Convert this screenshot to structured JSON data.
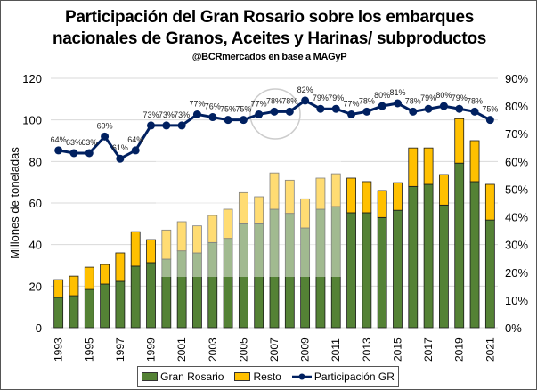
{
  "chart_data": {
    "type": "bar",
    "stacked": true,
    "title": "Participación del Gran Rosario sobre los embarques nacionales de Granos, Aceites y Harinas/ subproductos",
    "title_line1": "Participación del Gran Rosario sobre los embarques",
    "title_line2": "nacionales de Granos, Aceites y Harinas/ subproductos",
    "subtitle": "@BCRmercados en base a MAGyP",
    "ylabel": "Millones de toneladas",
    "ylim": [
      0,
      120
    ],
    "y_ticks": [
      "0",
      "20",
      "40",
      "60",
      "80",
      "100",
      "120"
    ],
    "y2lim": [
      0,
      90
    ],
    "y2_ticks": [
      "0%",
      "10%",
      "20%",
      "30%",
      "40%",
      "50%",
      "60%",
      "70%",
      "80%",
      "90%"
    ],
    "grid": true,
    "legend_position": "bottom",
    "categories": [
      "1993",
      "1994",
      "1995",
      "1996",
      "1997",
      "1998",
      "1999",
      "2000",
      "2001",
      "2002",
      "2003",
      "2004",
      "2005",
      "2006",
      "2007",
      "2008",
      "2009",
      "2010",
      "2011",
      "2012",
      "2013",
      "2014",
      "2015",
      "2016",
      "2017",
      "2018",
      "2019",
      "2020",
      "2021"
    ],
    "x_tick_labels": [
      "1993",
      "1995",
      "1997",
      "1999",
      "2001",
      "2003",
      "2005",
      "2007",
      "2009",
      "2011",
      "2013",
      "2015",
      "2017",
      "2019",
      "2021"
    ],
    "series": [
      {
        "name": "Gran Rosario",
        "type": "bar",
        "color": "#548235",
        "values": [
          14.6,
          15.4,
          18.4,
          21,
          22.3,
          29.6,
          31.3,
          33,
          37,
          36,
          41,
          43,
          50,
          50,
          57,
          55,
          48,
          57,
          58.3,
          55.3,
          55.3,
          53,
          56.5,
          68,
          69,
          59,
          79.2,
          70.3,
          51.8
        ]
      },
      {
        "name": "Resto",
        "type": "bar",
        "color": "#FFC000",
        "values": [
          8.5,
          9.4,
          10.7,
          9.4,
          13.7,
          16.6,
          11.1,
          14,
          14,
          13,
          13,
          14,
          15,
          13,
          17.5,
          16,
          14,
          15,
          15.8,
          16.7,
          15,
          13,
          13.3,
          18.5,
          17.5,
          14.7,
          21.4,
          19.7,
          17.2
        ]
      },
      {
        "name": "Participación GR",
        "type": "line",
        "axis": "secondary",
        "color": "#002060",
        "values": [
          64,
          63,
          63,
          69,
          61,
          64,
          73,
          73,
          73,
          77,
          76,
          75,
          75,
          77,
          78,
          78,
          82,
          79,
          79,
          77,
          78,
          80,
          81,
          78,
          79,
          80,
          79,
          78,
          75
        ],
        "labels": [
          "64%",
          "63%",
          "63%",
          "69%",
          "61%",
          "64%",
          "73%",
          "73%",
          "73%",
          "77%",
          "76%",
          "75%",
          "75%",
          "77%",
          "78%",
          "78%",
          "82%",
          "79%",
          "79%",
          "77%",
          "78%",
          "80%",
          "81%",
          "78%",
          "79%",
          "80%",
          "79%",
          "78%",
          "75%"
        ]
      }
    ]
  }
}
